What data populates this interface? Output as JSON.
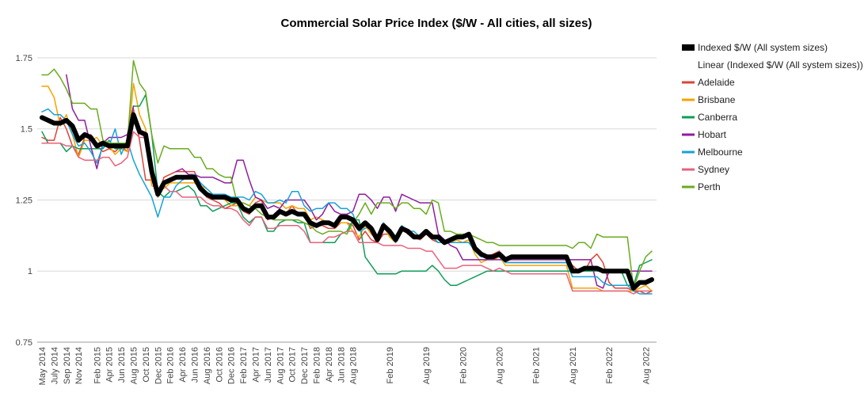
{
  "chart_data": {
    "type": "line",
    "title": "Commercial Solar Price Index ($/W - All cities, all sizes)",
    "xlabel": "",
    "ylabel": "",
    "ylim": [
      0.75,
      1.8
    ],
    "yticks": [
      0.75,
      1,
      1.25,
      1.5,
      1.75
    ],
    "ytick_labels": [
      "0.75",
      "1",
      "1.25",
      "1.5",
      "1.75"
    ],
    "grid": true,
    "legend_position": "right",
    "x": [
      "May 2014",
      "Jun 2014",
      "Jul 2014",
      "Aug 2014",
      "Sep 2014",
      "Oct 2014",
      "Nov 2014",
      "Dec 2014",
      "Jan 2015",
      "Feb 2015",
      "Mar 2015",
      "Apr 2015",
      "May 2015",
      "Jun 2015",
      "Jul 2015",
      "Aug 2015",
      "Sep 2015",
      "Oct 2015",
      "Nov 2015",
      "Dec 2015",
      "Jan 2016",
      "Feb 2016",
      "Mar 2016",
      "Apr 2016",
      "May 2016",
      "Jun 2016",
      "Jul 2016",
      "Aug 2016",
      "Sep 2016",
      "Oct 2016",
      "Nov 2016",
      "Dec 2016",
      "Jan 2017",
      "Feb 2017",
      "Mar 2017",
      "Apr 2017",
      "May 2017",
      "Jun 2017",
      "Jul 2017",
      "Aug 2017",
      "Sep 2017",
      "Oct 2017",
      "Nov 2017",
      "Dec 2017",
      "Jan 2018",
      "Feb 2018",
      "Mar 2018",
      "Apr 2018",
      "May 2018",
      "Jun 2018",
      "Jul 2018",
      "Aug 2018",
      "Sep 2018",
      "Oct 2018",
      "Nov 2018",
      "Dec 2018",
      "Jan 2019",
      "Feb 2019",
      "Mar 2019",
      "Apr 2019",
      "May 2019",
      "Jun 2019",
      "Jul 2019",
      "Aug 2019",
      "Sep 2019",
      "Oct 2019",
      "Nov 2019",
      "Dec 2019",
      "Jan 2020",
      "Feb 2020",
      "Mar 2020",
      "Apr 2020",
      "May 2020",
      "Jun 2020",
      "Jul 2020",
      "Aug 2020",
      "Sep 2020",
      "Oct 2020",
      "Nov 2020",
      "Dec 2020",
      "Jan 2021",
      "Feb 2021",
      "Mar 2021",
      "Apr 2021",
      "May 2021",
      "Jun 2021",
      "Jul 2021",
      "Aug 2021",
      "Sep 2021",
      "Oct 2021",
      "Nov 2021",
      "Dec 2021",
      "Jan 2022",
      "Feb 2022",
      "Mar 2022",
      "Apr 2022",
      "May 2022",
      "Jun 2022",
      "Jul 2022",
      "Aug 2022",
      "Sep 2022"
    ],
    "x_tick_labels": [
      "May 2014",
      "July 2014",
      "Sep 2014",
      "Nov 2014",
      "Feb 2015",
      "Apr 2015",
      "Jun 2015",
      "Aug 2015",
      "Oct 2015",
      "Dec 2015",
      "Feb 2016",
      "Apr 2016",
      "Jun 2016",
      "Aug 2016",
      "Oct 2016",
      "Dec 2016",
      "Feb 2017",
      "Apr 2017",
      "Jun 2017",
      "Aug 2017",
      "Oct 2017",
      "Dec 2017",
      "Feb 2018",
      "Apr 2018",
      "Jun 2018",
      "Aug 2018",
      "Feb 2019",
      "Aug 2019",
      "Feb 2020",
      "Aug 2020",
      "Feb 2021",
      "Aug 2021",
      "Feb 2022",
      "Aug 2022"
    ],
    "series": [
      {
        "name": "Indexed $/W (All system sizes)",
        "color": "#000000",
        "values": [
          1.54,
          1.53,
          1.52,
          1.52,
          1.53,
          1.51,
          1.46,
          1.48,
          1.47,
          1.44,
          1.45,
          1.44,
          1.44,
          1.44,
          1.44,
          1.55,
          1.49,
          1.48,
          1.35,
          1.27,
          1.31,
          1.32,
          1.33,
          1.33,
          1.33,
          1.33,
          1.29,
          1.27,
          1.26,
          1.26,
          1.26,
          1.25,
          1.25,
          1.22,
          1.21,
          1.23,
          1.23,
          1.19,
          1.19,
          1.21,
          1.2,
          1.21,
          1.2,
          1.2,
          1.17,
          1.16,
          1.17,
          1.17,
          1.16,
          1.19,
          1.19,
          1.18,
          1.15,
          1.17,
          1.15,
          1.11,
          1.16,
          1.14,
          1.11,
          1.15,
          1.14,
          1.12,
          1.12,
          1.14,
          1.12,
          1.12,
          1.1,
          1.11,
          1.12,
          1.12,
          1.13,
          1.08,
          1.06,
          1.05,
          1.05,
          1.06,
          1.04,
          1.05,
          1.05,
          1.05,
          1.05,
          1.05,
          1.05,
          1.05,
          1.05,
          1.05,
          1.05,
          1.0,
          1.0,
          1.01,
          1.01,
          1.01,
          1.0,
          1.0,
          1.0,
          1.0,
          1.0,
          0.94,
          0.96,
          0.96,
          0.97
        ]
      },
      {
        "name": "Adelaide",
        "color": "#db4437",
        "values": [
          1.47,
          1.46,
          1.46,
          1.54,
          1.5,
          1.44,
          1.41,
          1.47,
          1.48,
          1.44,
          1.42,
          1.43,
          1.42,
          1.44,
          1.42,
          1.57,
          1.46,
          1.32,
          1.32,
          1.26,
          1.33,
          1.34,
          1.35,
          1.35,
          1.35,
          1.35,
          1.3,
          1.26,
          1.25,
          1.24,
          1.22,
          1.23,
          1.24,
          1.21,
          1.2,
          1.24,
          1.25,
          1.18,
          1.19,
          1.21,
          1.2,
          1.23,
          1.2,
          1.2,
          1.15,
          1.16,
          1.16,
          1.15,
          1.15,
          1.17,
          1.17,
          1.16,
          1.11,
          1.14,
          1.11,
          1.1,
          1.13,
          1.13,
          1.1,
          1.15,
          1.13,
          1.12,
          1.11,
          1.13,
          1.11,
          1.1,
          1.1,
          1.1,
          1.1,
          1.1,
          1.11,
          1.07,
          1.06,
          1.05,
          1.06,
          1.07,
          1.03,
          1.03,
          1.03,
          1.03,
          1.03,
          1.03,
          1.03,
          1.03,
          1.03,
          1.03,
          1.03,
          1.02,
          1.0,
          1.0,
          1.04,
          1.06,
          1.03,
          0.96,
          0.94,
          0.94,
          0.94,
          0.93,
          0.93,
          0.92,
          0.93
        ]
      },
      {
        "name": "Brisbane",
        "color": "#f4a300",
        "values": [
          1.65,
          1.65,
          1.61,
          1.51,
          1.55,
          1.48,
          1.4,
          1.46,
          1.46,
          1.47,
          1.44,
          1.44,
          1.41,
          1.43,
          1.42,
          1.66,
          1.55,
          1.5,
          1.3,
          1.29,
          1.29,
          1.31,
          1.31,
          1.31,
          1.31,
          1.31,
          1.3,
          1.29,
          1.27,
          1.26,
          1.25,
          1.23,
          1.23,
          1.24,
          1.23,
          1.26,
          1.25,
          1.24,
          1.24,
          1.24,
          1.22,
          1.23,
          1.22,
          1.22,
          1.18,
          1.19,
          1.18,
          1.17,
          1.16,
          1.17,
          1.17,
          1.14,
          1.12,
          1.16,
          1.13,
          1.11,
          1.16,
          1.12,
          1.1,
          1.16,
          1.14,
          1.13,
          1.12,
          1.14,
          1.13,
          1.11,
          1.1,
          1.1,
          1.11,
          1.1,
          1.11,
          1.06,
          1.03,
          1.04,
          1.04,
          1.05,
          1.02,
          1.02,
          1.02,
          1.02,
          1.02,
          1.02,
          1.02,
          1.02,
          1.02,
          1.02,
          1.02,
          0.94,
          0.94,
          0.94,
          0.94,
          0.94,
          0.93,
          0.93,
          0.93,
          0.93,
          0.93,
          0.93,
          0.94,
          0.95,
          0.93
        ]
      },
      {
        "name": "Canberra",
        "color": "#0f9d58",
        "values": [
          1.49,
          1.45,
          1.45,
          1.45,
          1.42,
          1.44,
          1.43,
          1.43,
          1.43,
          1.43,
          1.43,
          1.46,
          1.43,
          1.43,
          1.45,
          1.58,
          1.58,
          1.62,
          1.48,
          1.28,
          1.26,
          1.28,
          1.28,
          1.29,
          1.3,
          1.28,
          1.23,
          1.23,
          1.21,
          1.22,
          1.23,
          1.24,
          1.24,
          1.19,
          1.17,
          1.19,
          1.19,
          1.14,
          1.14,
          1.17,
          1.18,
          1.18,
          1.17,
          1.17,
          1.1,
          1.1,
          1.1,
          1.1,
          1.1,
          1.13,
          1.14,
          1.18,
          1.18,
          1.05,
          1.02,
          0.99,
          0.99,
          0.99,
          0.99,
          1.0,
          1.0,
          1.0,
          1.0,
          1.0,
          1.02,
          1.0,
          0.97,
          0.95,
          0.95,
          0.96,
          0.97,
          0.98,
          0.99,
          1.0,
          1.0,
          1.0,
          1.0,
          1.0,
          1.0,
          1.0,
          1.0,
          1.0,
          1.0,
          1.0,
          1.0,
          1.0,
          1.0,
          1.0,
          1.0,
          1.0,
          1.0,
          1.0,
          1.0,
          1.0,
          1.0,
          1.0,
          0.95,
          0.95,
          1.02,
          1.03,
          1.04
        ]
      },
      {
        "name": "Hobart",
        "color": "#8e1d9c",
        "values": [
          null,
          null,
          null,
          null,
          1.69,
          1.57,
          1.53,
          1.53,
          1.44,
          1.36,
          1.45,
          1.47,
          1.47,
          1.47,
          1.48,
          1.58,
          null,
          null,
          null,
          1.38,
          null,
          null,
          1.35,
          1.36,
          1.34,
          1.34,
          1.33,
          1.33,
          1.33,
          1.32,
          1.31,
          1.31,
          1.39,
          1.39,
          1.32,
          1.26,
          1.25,
          1.22,
          1.23,
          1.22,
          1.25,
          1.25,
          1.25,
          1.25,
          1.22,
          1.18,
          1.2,
          1.24,
          1.21,
          1.2,
          1.2,
          1.21,
          1.27,
          1.27,
          1.25,
          1.22,
          1.26,
          1.26,
          1.21,
          1.27,
          1.26,
          1.25,
          1.24,
          1.24,
          1.24,
          1.13,
          1.11,
          1.09,
          1.08,
          1.04,
          1.04,
          1.04,
          1.04,
          1.04,
          1.04,
          1.04,
          1.04,
          1.04,
          1.04,
          1.04,
          1.04,
          1.04,
          1.04,
          1.04,
          1.04,
          1.04,
          1.04,
          1.04,
          1.04,
          1.04,
          1.04,
          0.95,
          0.94,
          1.0,
          1.0,
          1.0,
          1.0,
          1.0,
          1.0,
          1.0,
          1.0
        ]
      },
      {
        "name": "Melbourne",
        "color": "#17a2d8",
        "values": [
          1.56,
          1.57,
          1.55,
          1.55,
          1.53,
          1.48,
          1.44,
          1.45,
          1.42,
          1.38,
          1.44,
          1.44,
          1.5,
          1.41,
          1.46,
          1.39,
          1.34,
          1.3,
          1.26,
          1.19,
          1.26,
          1.26,
          1.3,
          1.32,
          1.33,
          1.34,
          1.31,
          1.29,
          1.27,
          1.27,
          1.27,
          1.26,
          1.26,
          1.26,
          1.25,
          1.28,
          1.27,
          1.24,
          1.24,
          1.25,
          1.24,
          1.28,
          1.28,
          1.23,
          1.21,
          1.22,
          1.22,
          1.24,
          1.24,
          1.22,
          1.22,
          1.2,
          1.14,
          1.15,
          1.16,
          1.12,
          1.17,
          1.14,
          1.1,
          1.16,
          1.14,
          1.14,
          1.12,
          1.14,
          1.12,
          1.1,
          1.1,
          1.1,
          1.1,
          1.1,
          1.1,
          1.07,
          1.05,
          1.05,
          1.05,
          1.05,
          1.03,
          1.03,
          1.03,
          1.03,
          1.03,
          1.03,
          1.03,
          1.03,
          1.03,
          1.03,
          1.03,
          0.98,
          0.98,
          0.98,
          0.98,
          0.98,
          0.96,
          0.95,
          0.95,
          0.95,
          0.95,
          0.93,
          0.92,
          0.92,
          0.92
        ]
      },
      {
        "name": "Sydney",
        "color": "#e8627d",
        "values": [
          1.45,
          1.45,
          1.45,
          1.45,
          1.44,
          1.44,
          1.4,
          1.39,
          1.39,
          1.39,
          1.4,
          1.4,
          1.37,
          1.38,
          1.4,
          1.49,
          1.47,
          1.47,
          1.35,
          1.27,
          1.3,
          1.28,
          1.28,
          1.26,
          1.26,
          1.26,
          1.26,
          1.24,
          1.23,
          1.23,
          1.22,
          1.22,
          1.21,
          1.18,
          1.16,
          1.19,
          1.19,
          1.15,
          1.15,
          1.16,
          1.16,
          1.16,
          1.16,
          1.14,
          1.1,
          1.1,
          1.1,
          1.12,
          1.12,
          1.13,
          1.14,
          1.14,
          1.1,
          1.1,
          1.1,
          1.1,
          1.09,
          1.09,
          1.09,
          1.09,
          1.08,
          1.08,
          1.08,
          1.07,
          1.07,
          1.04,
          1.01,
          1.01,
          1.01,
          1.02,
          1.02,
          1.02,
          1.02,
          1.01,
          1.0,
          1.01,
          1.0,
          0.99,
          0.99,
          0.99,
          0.99,
          0.99,
          0.99,
          0.99,
          0.99,
          0.99,
          0.99,
          0.93,
          0.93,
          0.93,
          0.93,
          0.93,
          0.93,
          0.93,
          0.93,
          0.93,
          0.93,
          0.92,
          0.93,
          0.93,
          0.93
        ]
      },
      {
        "name": "Perth",
        "color": "#6aab1f",
        "values": [
          1.69,
          1.69,
          1.71,
          1.68,
          1.64,
          1.59,
          1.59,
          1.59,
          1.57,
          1.57,
          1.46,
          1.45,
          1.45,
          1.45,
          1.45,
          1.74,
          1.66,
          1.63,
          1.48,
          1.38,
          1.44,
          1.43,
          1.43,
          1.43,
          1.43,
          1.4,
          1.4,
          1.36,
          1.36,
          1.34,
          1.33,
          1.33,
          1.24,
          1.24,
          1.23,
          1.22,
          1.2,
          1.19,
          1.18,
          1.18,
          1.18,
          1.18,
          1.18,
          1.17,
          1.16,
          1.14,
          1.13,
          1.14,
          1.14,
          1.14,
          1.13,
          1.17,
          1.2,
          1.24,
          1.2,
          1.24,
          1.24,
          1.24,
          1.22,
          1.24,
          1.24,
          1.22,
          1.22,
          1.2,
          1.25,
          1.24,
          1.14,
          1.14,
          1.13,
          1.13,
          1.13,
          1.12,
          1.11,
          1.1,
          1.1,
          1.09,
          1.09,
          1.09,
          1.09,
          1.09,
          1.09,
          1.09,
          1.09,
          1.09,
          1.09,
          1.09,
          1.09,
          1.08,
          1.1,
          1.1,
          1.08,
          1.13,
          1.12,
          1.12,
          1.12,
          1.12,
          1.12,
          0.94,
          1.0,
          1.05,
          1.07
        ]
      }
    ],
    "legend": [
      {
        "label": "Indexed $/W (All system sizes)",
        "color": "#000000",
        "marker": "thick"
      },
      {
        "label": "Linear (Indexed $/W (All system sizes))",
        "color": "",
        "marker": "none"
      },
      {
        "label": "Adelaide",
        "color": "#db4437",
        "marker": "line"
      },
      {
        "label": "Brisbane",
        "color": "#f4a300",
        "marker": "line"
      },
      {
        "label": "Canberra",
        "color": "#0f9d58",
        "marker": "line"
      },
      {
        "label": "Hobart",
        "color": "#8e1d9c",
        "marker": "line"
      },
      {
        "label": "Melbourne",
        "color": "#17a2d8",
        "marker": "line"
      },
      {
        "label": "Sydney",
        "color": "#e8627d",
        "marker": "line"
      },
      {
        "label": "Perth",
        "color": "#6aab1f",
        "marker": "line"
      }
    ]
  }
}
